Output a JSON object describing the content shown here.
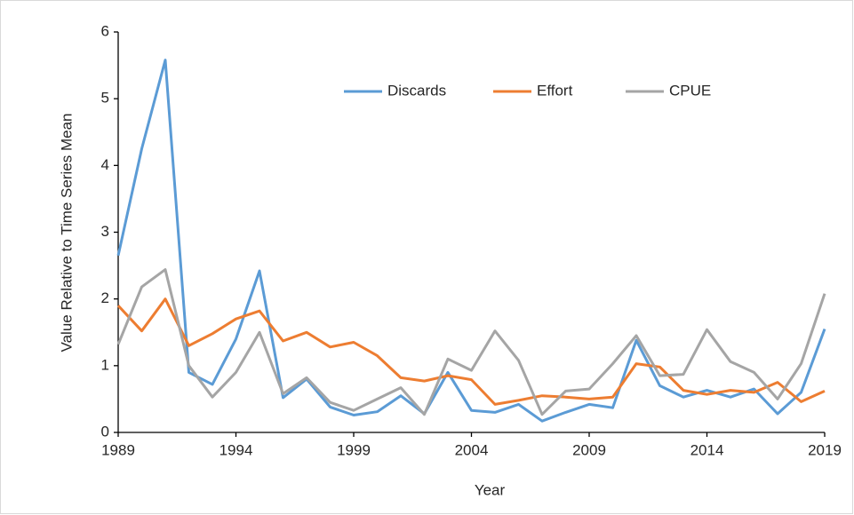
{
  "chart_data": {
    "type": "line",
    "x": [
      1989,
      1990,
      1991,
      1992,
      1993,
      1994,
      1995,
      1996,
      1997,
      1998,
      1999,
      2000,
      2001,
      2002,
      2003,
      2004,
      2005,
      2006,
      2007,
      2008,
      2009,
      2010,
      2011,
      2012,
      2013,
      2014,
      2015,
      2016,
      2017,
      2018,
      2019
    ],
    "series": [
      {
        "name": "Discards",
        "color": "#5b9bd5",
        "values": [
          2.65,
          4.25,
          5.58,
          0.9,
          0.72,
          1.4,
          2.42,
          0.52,
          0.8,
          0.38,
          0.26,
          0.31,
          0.55,
          0.28,
          0.9,
          0.33,
          0.3,
          0.42,
          0.17,
          0.3,
          0.42,
          0.37,
          1.38,
          0.7,
          0.53,
          0.63,
          0.53,
          0.65,
          0.28,
          0.6,
          1.55
        ]
      },
      {
        "name": "Effort",
        "color": "#ed7d31",
        "values": [
          1.9,
          1.52,
          2.0,
          1.3,
          1.48,
          1.7,
          1.82,
          1.37,
          1.5,
          1.28,
          1.35,
          1.15,
          0.82,
          0.77,
          0.85,
          0.79,
          0.42,
          0.48,
          0.55,
          0.53,
          0.5,
          0.53,
          1.03,
          0.98,
          0.63,
          0.57,
          0.63,
          0.6,
          0.75,
          0.46,
          0.62
        ]
      },
      {
        "name": "CPUE",
        "color": "#a5a5a5",
        "values": [
          1.32,
          2.18,
          2.44,
          1.0,
          0.53,
          0.9,
          1.5,
          0.58,
          0.82,
          0.45,
          0.33,
          0.5,
          0.67,
          0.27,
          1.1,
          0.93,
          1.52,
          1.08,
          0.27,
          0.62,
          0.65,
          1.03,
          1.45,
          0.85,
          0.87,
          1.54,
          1.06,
          0.9,
          0.5,
          1.03,
          2.08
        ]
      }
    ],
    "xlabel": "Year",
    "ylabel": "Value Relative to Time Series Mean",
    "xlim": [
      1989,
      2019
    ],
    "xticks": [
      1989,
      1994,
      1999,
      2004,
      2009,
      2014,
      2019
    ],
    "ylim": [
      0,
      6
    ],
    "yticks": [
      0,
      1,
      2,
      3,
      4,
      5,
      6
    ],
    "grid": false,
    "legend": "top"
  }
}
